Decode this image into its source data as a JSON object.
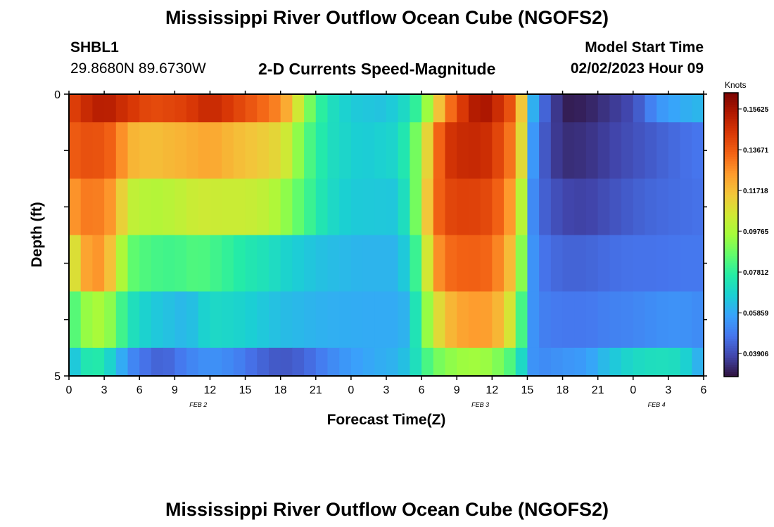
{
  "header": {
    "title": "Mississippi River Outflow Ocean Cube (NGOFS2)",
    "station": "SHBL1",
    "coords": "29.8680N  89.6730W",
    "variable": "2-D Currents Speed-Magnitude",
    "model_start_label": "Model Start Time",
    "model_start_value": "02/02/2023 Hour 09"
  },
  "footer": {
    "title": "Mississippi River Outflow Ocean Cube (NGOFS2)"
  },
  "chart_data": {
    "type": "heatmap",
    "xlabel": "Forecast Time(Z)",
    "ylabel": "Depth (ft)",
    "x_tick_labels": [
      "0",
      "3",
      "6",
      "9",
      "12",
      "15",
      "18",
      "21",
      "0",
      "3",
      "6",
      "9",
      "12",
      "15",
      "18",
      "21",
      "0",
      "3",
      "6"
    ],
    "x_date_labels": [
      {
        "label": "FEB 2",
        "hour": 11
      },
      {
        "label": "FEB 3",
        "hour": 35
      },
      {
        "label": "FEB 4",
        "hour": 50
      }
    ],
    "x_range_hours": [
      0,
      54
    ],
    "y_tick_labels": [
      "0",
      "5"
    ],
    "y_range_ft": [
      0,
      5
    ],
    "colorbar": {
      "unit": "Knots",
      "range": [
        0.028,
        0.164
      ],
      "ticks": [
        "0.03906",
        "0.05859",
        "0.07812",
        "0.09765",
        "0.11718",
        "0.13671",
        "0.15625"
      ],
      "colors": [
        "#30123b",
        "#4145ab",
        "#4675ed",
        "#39a2fc",
        "#1bcfd4",
        "#24eca6",
        "#61fc6c",
        "#a4fc3b",
        "#d1e834",
        "#f3c63a",
        "#fe9b2d",
        "#f36315",
        "#d93806",
        "#b11901",
        "#7a0402"
      ]
    },
    "layers": [
      {
        "depth_ft": [
          0,
          0.5
        ],
        "keyframes": [
          [
            0,
            0.14
          ],
          [
            1,
            0.147
          ],
          [
            3,
            0.154
          ],
          [
            5,
            0.146
          ],
          [
            7,
            0.14
          ],
          [
            10,
            0.143
          ],
          [
            12,
            0.15
          ],
          [
            14,
            0.143
          ],
          [
            16,
            0.136
          ],
          [
            18,
            0.128
          ],
          [
            19,
            0.115
          ],
          [
            20,
            0.096
          ],
          [
            21,
            0.082
          ],
          [
            22,
            0.073
          ],
          [
            24,
            0.066
          ],
          [
            27,
            0.064
          ],
          [
            29,
            0.072
          ],
          [
            30,
            0.085
          ],
          [
            31,
            0.105
          ],
          [
            32,
            0.128
          ],
          [
            34,
            0.15
          ],
          [
            35,
            0.157
          ],
          [
            36,
            0.153
          ],
          [
            37,
            0.143
          ],
          [
            38,
            0.135
          ],
          [
            38.5,
            0.115
          ],
          [
            39,
            0.085
          ],
          [
            39.5,
            0.06
          ],
          [
            40,
            0.048
          ],
          [
            41,
            0.04
          ],
          [
            42,
            0.03
          ],
          [
            44,
            0.031
          ],
          [
            46,
            0.035
          ],
          [
            48,
            0.039
          ],
          [
            49,
            0.046
          ],
          [
            50,
            0.054
          ],
          [
            52,
            0.059
          ],
          [
            54,
            0.062
          ]
        ]
      },
      {
        "depth_ft": [
          0.5,
          1.5
        ],
        "keyframes": [
          [
            0,
            0.136
          ],
          [
            2,
            0.14
          ],
          [
            4,
            0.134
          ],
          [
            5,
            0.12
          ],
          [
            7,
            0.117
          ],
          [
            10,
            0.12
          ],
          [
            12,
            0.123
          ],
          [
            14,
            0.118
          ],
          [
            16,
            0.115
          ],
          [
            18,
            0.11
          ],
          [
            19,
            0.1
          ],
          [
            20,
            0.086
          ],
          [
            22,
            0.072
          ],
          [
            25,
            0.066
          ],
          [
            28,
            0.069
          ],
          [
            29,
            0.08
          ],
          [
            30,
            0.098
          ],
          [
            31,
            0.125
          ],
          [
            32,
            0.145
          ],
          [
            34,
            0.15
          ],
          [
            36,
            0.147
          ],
          [
            37,
            0.136
          ],
          [
            38,
            0.128
          ],
          [
            38.5,
            0.11
          ],
          [
            39,
            0.08
          ],
          [
            39.5,
            0.055
          ],
          [
            40,
            0.045
          ],
          [
            41,
            0.038
          ],
          [
            42,
            0.033
          ],
          [
            44,
            0.034
          ],
          [
            46,
            0.037
          ],
          [
            48,
            0.04
          ],
          [
            50,
            0.043
          ],
          [
            52,
            0.046
          ],
          [
            54,
            0.048
          ]
        ]
      },
      {
        "depth_ft": [
          1.5,
          2.5
        ],
        "keyframes": [
          [
            0,
            0.122
          ],
          [
            1,
            0.131
          ],
          [
            3,
            0.13
          ],
          [
            4,
            0.122
          ],
          [
            5,
            0.103
          ],
          [
            7,
            0.099
          ],
          [
            9,
            0.101
          ],
          [
            11,
            0.105
          ],
          [
            13,
            0.104
          ],
          [
            15,
            0.104
          ],
          [
            17,
            0.101
          ],
          [
            18,
            0.096
          ],
          [
            20,
            0.083
          ],
          [
            22,
            0.071
          ],
          [
            24,
            0.066
          ],
          [
            28,
            0.065
          ],
          [
            29,
            0.078
          ],
          [
            30,
            0.1
          ],
          [
            31,
            0.13
          ],
          [
            32,
            0.141
          ],
          [
            34,
            0.143
          ],
          [
            36,
            0.14
          ],
          [
            37,
            0.131
          ],
          [
            38,
            0.12
          ],
          [
            38.5,
            0.1
          ],
          [
            39,
            0.072
          ],
          [
            39.5,
            0.052
          ],
          [
            40,
            0.045
          ],
          [
            42,
            0.038
          ],
          [
            44,
            0.037
          ],
          [
            46,
            0.04
          ],
          [
            48,
            0.043
          ],
          [
            50,
            0.045
          ],
          [
            52,
            0.046
          ],
          [
            54,
            0.047
          ]
        ]
      },
      {
        "depth_ft": [
          2.5,
          3.5
        ],
        "keyframes": [
          [
            0,
            0.099
          ],
          [
            1,
            0.118
          ],
          [
            2,
            0.128
          ],
          [
            3,
            0.124
          ],
          [
            4,
            0.109
          ],
          [
            5,
            0.087
          ],
          [
            7,
            0.082
          ],
          [
            9,
            0.081
          ],
          [
            11,
            0.084
          ],
          [
            13,
            0.08
          ],
          [
            15,
            0.075
          ],
          [
            17,
            0.072
          ],
          [
            19,
            0.067
          ],
          [
            22,
            0.063
          ],
          [
            25,
            0.061
          ],
          [
            28,
            0.061
          ],
          [
            29,
            0.07
          ],
          [
            30,
            0.09
          ],
          [
            31,
            0.122
          ],
          [
            32,
            0.133
          ],
          [
            34,
            0.136
          ],
          [
            36,
            0.134
          ],
          [
            37,
            0.124
          ],
          [
            38,
            0.112
          ],
          [
            38.5,
            0.092
          ],
          [
            39,
            0.068
          ],
          [
            39.5,
            0.054
          ],
          [
            40,
            0.048
          ],
          [
            42,
            0.044
          ],
          [
            44,
            0.044
          ],
          [
            46,
            0.046
          ],
          [
            48,
            0.047
          ],
          [
            50,
            0.047
          ],
          [
            52,
            0.048
          ],
          [
            54,
            0.048
          ]
        ]
      },
      {
        "depth_ft": [
          3.5,
          4.5
        ],
        "keyframes": [
          [
            0,
            0.078
          ],
          [
            1,
            0.091
          ],
          [
            2,
            0.097
          ],
          [
            3,
            0.097
          ],
          [
            4,
            0.088
          ],
          [
            5,
            0.074
          ],
          [
            7,
            0.066
          ],
          [
            9,
            0.063
          ],
          [
            10,
            0.061
          ],
          [
            11,
            0.066
          ],
          [
            12,
            0.07
          ],
          [
            14,
            0.069
          ],
          [
            16,
            0.066
          ],
          [
            18,
            0.063
          ],
          [
            22,
            0.06
          ],
          [
            26,
            0.059
          ],
          [
            28,
            0.059
          ],
          [
            29,
            0.062
          ],
          [
            30,
            0.085
          ],
          [
            31,
            0.103
          ],
          [
            32,
            0.117
          ],
          [
            34,
            0.125
          ],
          [
            36,
            0.124
          ],
          [
            37,
            0.114
          ],
          [
            38,
            0.1
          ],
          [
            38.5,
            0.082
          ],
          [
            39,
            0.064
          ],
          [
            39.5,
            0.054
          ],
          [
            40,
            0.05
          ],
          [
            42,
            0.048
          ],
          [
            44,
            0.048
          ],
          [
            46,
            0.05
          ],
          [
            48,
            0.051
          ],
          [
            50,
            0.053
          ],
          [
            52,
            0.054
          ],
          [
            54,
            0.052
          ]
        ]
      },
      {
        "depth_ft": [
          4.5,
          5
        ],
        "keyframes": [
          [
            0,
            0.06
          ],
          [
            1,
            0.071
          ],
          [
            2,
            0.078
          ],
          [
            3,
            0.073
          ],
          [
            4,
            0.064
          ],
          [
            5,
            0.054
          ],
          [
            6,
            0.048
          ],
          [
            8,
            0.043
          ],
          [
            10,
            0.05
          ],
          [
            12,
            0.054
          ],
          [
            14,
            0.051
          ],
          [
            16,
            0.045
          ],
          [
            18,
            0.041
          ],
          [
            20,
            0.044
          ],
          [
            22,
            0.051
          ],
          [
            24,
            0.056
          ],
          [
            26,
            0.059
          ],
          [
            28,
            0.061
          ],
          [
            29,
            0.066
          ],
          [
            30,
            0.078
          ],
          [
            31,
            0.087
          ],
          [
            32,
            0.092
          ],
          [
            34,
            0.096
          ],
          [
            36,
            0.094
          ],
          [
            37,
            0.087
          ],
          [
            38,
            0.08
          ],
          [
            38.5,
            0.07
          ],
          [
            39,
            0.06
          ],
          [
            39.5,
            0.054
          ],
          [
            40,
            0.052
          ],
          [
            42,
            0.054
          ],
          [
            44,
            0.056
          ],
          [
            46,
            0.064
          ],
          [
            48,
            0.07
          ],
          [
            50,
            0.072
          ],
          [
            52,
            0.071
          ],
          [
            54,
            0.057
          ]
        ]
      }
    ]
  }
}
